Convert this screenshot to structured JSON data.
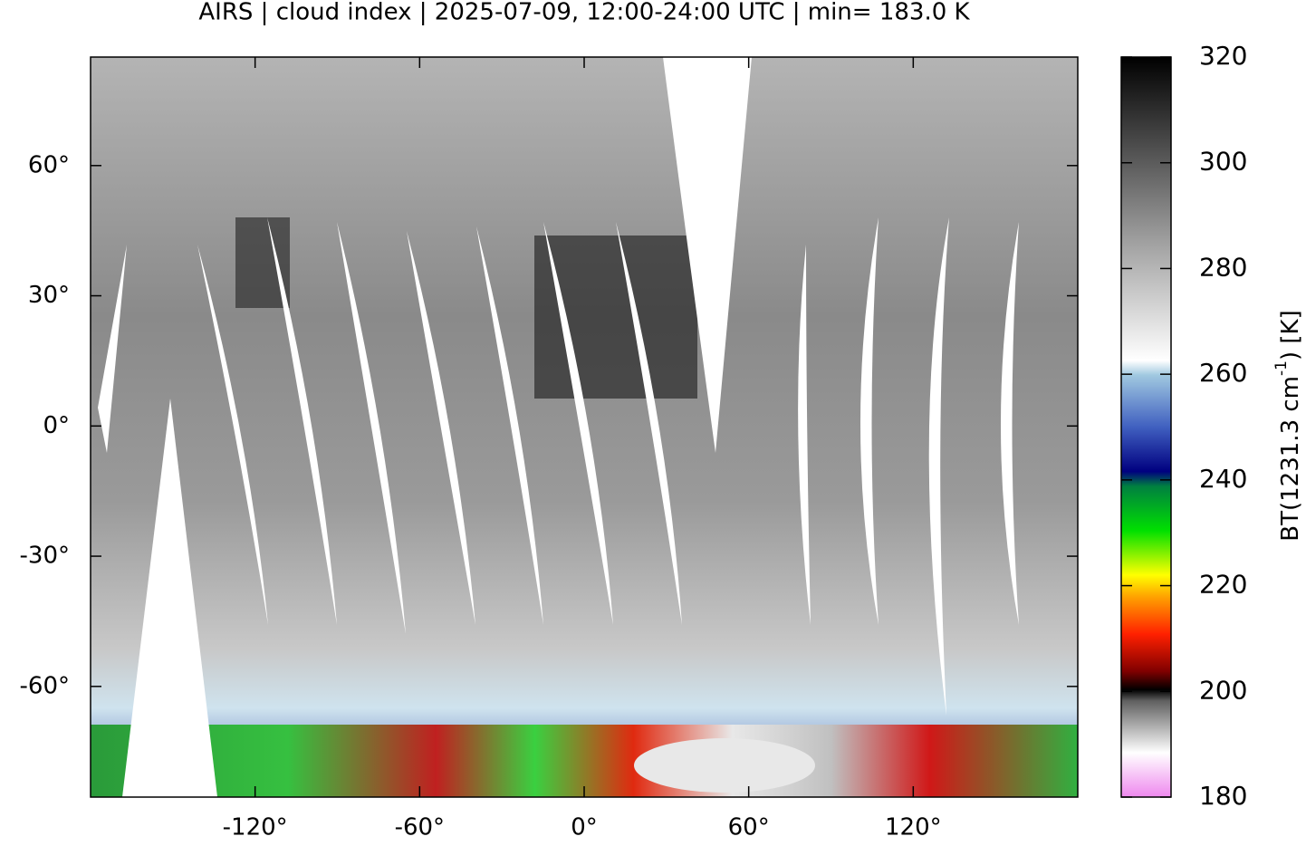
{
  "chart_data": {
    "type": "map",
    "title": "AIRS | cloud index | 2025-07-09, 12:00-24:00 UTC | min= 183.0 K",
    "xlim": [
      -180,
      180
    ],
    "ylim": [
      -85.5,
      85
    ],
    "xticks": [
      {
        "value": -120,
        "label": "-120°"
      },
      {
        "value": -60,
        "label": "-60°"
      },
      {
        "value": 0,
        "label": "0°"
      },
      {
        "value": 60,
        "label": "60°"
      },
      {
        "value": 120,
        "label": "120°"
      }
    ],
    "yticks": [
      {
        "value": 60,
        "label": "60°"
      },
      {
        "value": 30,
        "label": "30°"
      },
      {
        "value": 0,
        "label": "0°"
      },
      {
        "value": -30,
        "label": "-30°"
      },
      {
        "value": -60,
        "label": "-60°"
      }
    ],
    "colorbar": {
      "lim": [
        180,
        320
      ],
      "ticks": [
        180,
        200,
        220,
        240,
        260,
        280,
        300,
        320
      ],
      "label": {
        "text": "BT(1231.3 cm",
        "superscript": "-1",
        "suffix": ") [K]"
      }
    }
  }
}
